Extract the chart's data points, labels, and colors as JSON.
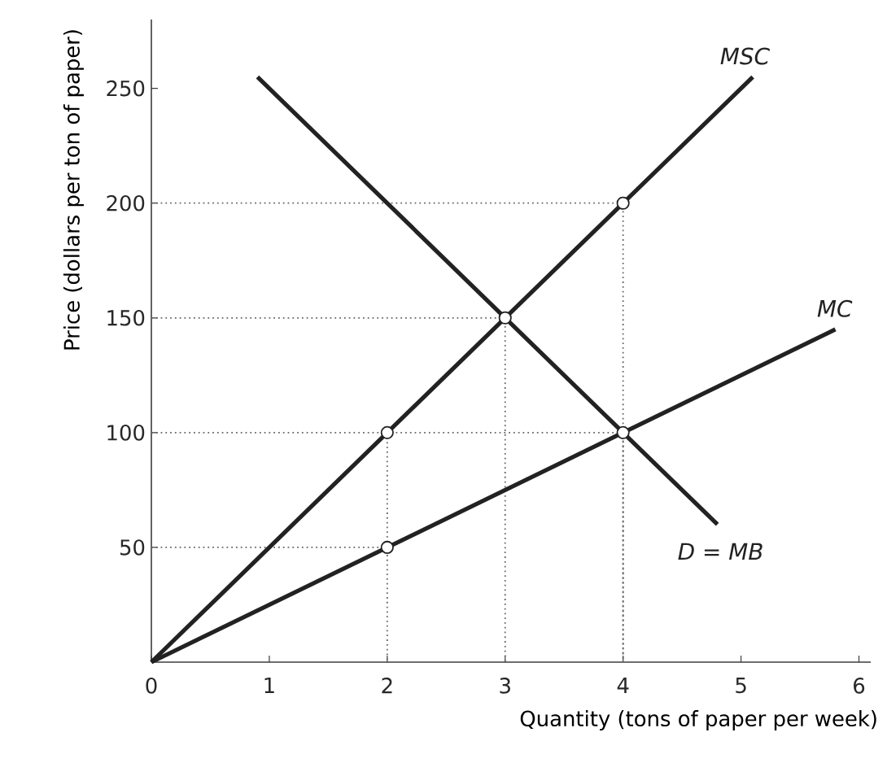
{
  "chart_data": {
    "type": "line",
    "xlabel": "Quantity (tons of paper per week)",
    "ylabel": "Price (dollars per ton of paper)",
    "xlim": [
      0,
      6.1
    ],
    "ylim": [
      0,
      280
    ],
    "xticks": [
      0,
      1,
      2,
      3,
      4,
      5,
      6
    ],
    "yticks": [
      50,
      100,
      150,
      200,
      250
    ],
    "grid": false,
    "series": [
      {
        "color": "#666666",
        "line_style": "dotted",
        "marker": "none",
        "x": [
          0,
          4,
          4
        ],
        "values": [
          200,
          200,
          0
        ]
      },
      {
        "color": "#666666",
        "line_style": "dotted",
        "marker": "none",
        "x": [
          0,
          3,
          3
        ],
        "values": [
          150,
          150,
          0
        ]
      },
      {
        "color": "#666666",
        "line_style": "dotted",
        "marker": "none",
        "x": [
          0,
          4,
          4
        ],
        "values": [
          100,
          100,
          0
        ]
      },
      {
        "color": "#666666",
        "line_style": "dotted",
        "marker": "none",
        "x": [
          2,
          2
        ],
        "values": [
          100,
          0
        ]
      },
      {
        "color": "#666666",
        "line_style": "dotted",
        "marker": "none",
        "x": [
          0,
          2
        ],
        "values": [
          50,
          50
        ]
      },
      {
        "name": "MSC",
        "color": "#222222",
        "line_style": "solid",
        "marker": "none",
        "x": [
          0,
          5.1
        ],
        "values": [
          0,
          255
        ]
      },
      {
        "name": "MC",
        "color": "#222222",
        "line_style": "solid",
        "marker": "none",
        "x": [
          0,
          5.8
        ],
        "values": [
          0,
          145
        ]
      },
      {
        "name": "D = MB",
        "color": "#222222",
        "line_style": "solid",
        "marker": "none",
        "x": [
          0.9,
          4.8
        ],
        "values": [
          255,
          60
        ]
      },
      {
        "type": "scatter",
        "color": "#222222",
        "marker": "circle",
        "x": [
          2,
          2,
          3,
          4,
          4
        ],
        "values": [
          50,
          100,
          150,
          100,
          200
        ]
      }
    ]
  }
}
